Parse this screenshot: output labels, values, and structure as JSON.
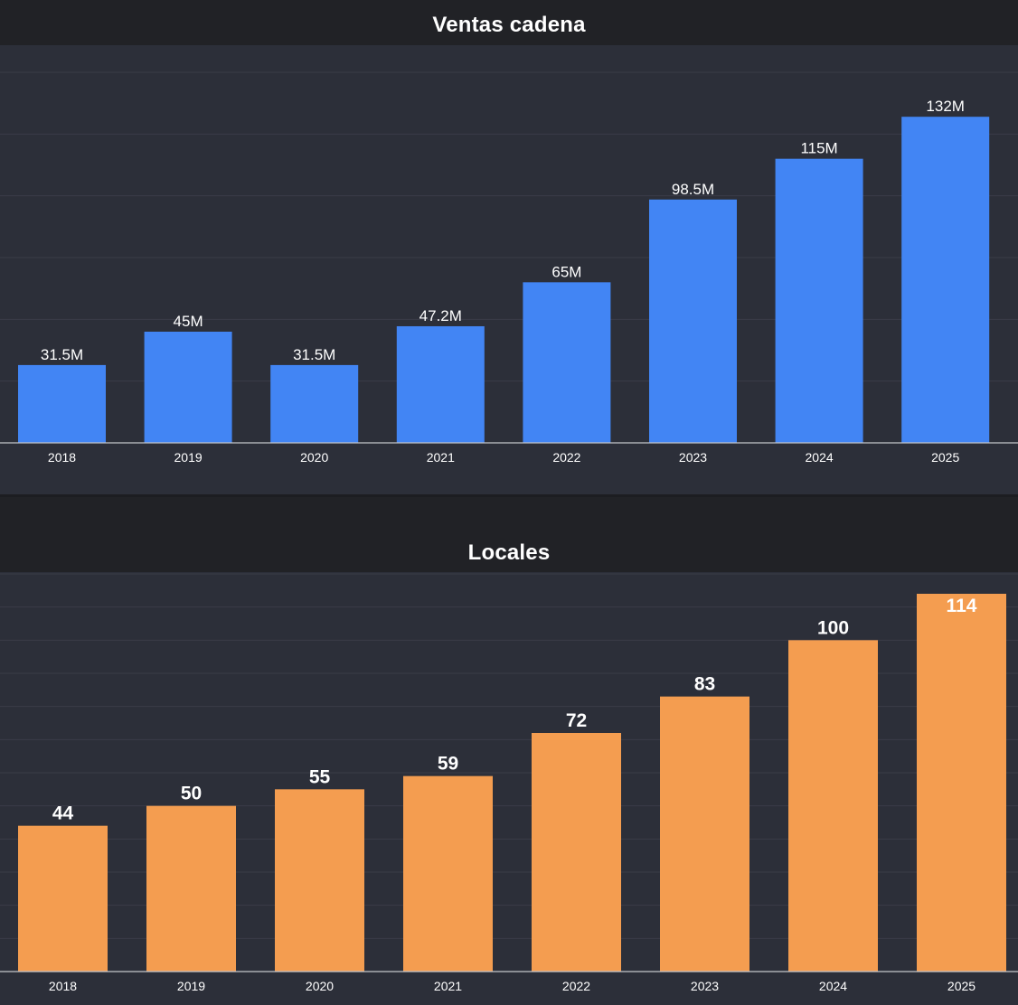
{
  "chart_data": [
    {
      "id": "sales",
      "type": "bar",
      "title": "Ventas cadena",
      "categories": [
        "2018",
        "2019",
        "2020",
        "2021",
        "2022",
        "2023",
        "2024",
        "2025"
      ],
      "values": [
        31.5,
        45,
        31.5,
        47.2,
        65,
        98.5,
        115,
        132
      ],
      "value_labels": [
        "31.5M",
        "45M",
        "31.5M",
        "47.2M",
        "65M",
        "98.5M",
        "115M",
        "132M"
      ],
      "unit": "M",
      "ylim": [
        0,
        150
      ],
      "grid": true,
      "xlabel": "",
      "ylabel": "",
      "color": "#4285f4"
    },
    {
      "id": "stores",
      "type": "bar",
      "title": "Locales",
      "categories": [
        "2018",
        "2019",
        "2020",
        "2021",
        "2022",
        "2023",
        "2024",
        "2025"
      ],
      "values": [
        44,
        50,
        55,
        59,
        72,
        83,
        100,
        114
      ],
      "value_labels": [
        "44",
        "50",
        "55",
        "59",
        "72",
        "83",
        "100",
        "114"
      ],
      "ylim": [
        0,
        120
      ],
      "grid": true,
      "xlabel": "",
      "ylabel": "",
      "color": "#f49d50"
    }
  ]
}
